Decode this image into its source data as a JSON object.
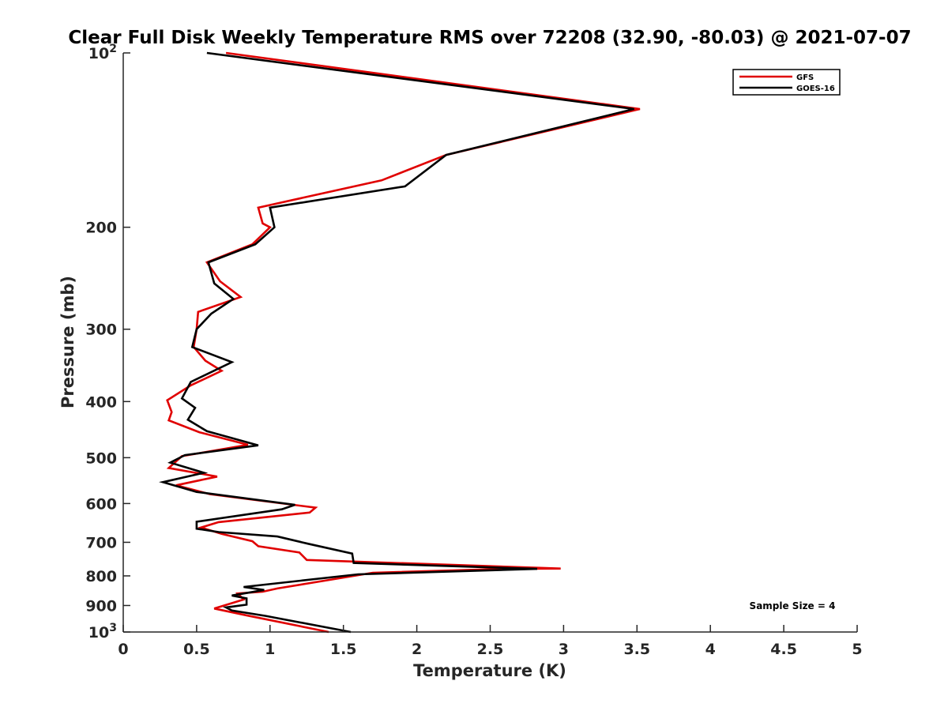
{
  "chart_data": {
    "type": "line",
    "title": "Clear Full Disk Weekly Temperature RMS over 72208 (32.90, -80.03) @ 2021-07-07",
    "xlabel": "Temperature (K)",
    "ylabel": "Pressure (mb)",
    "xlim": [
      0,
      5
    ],
    "ylim": [
      100,
      1000
    ],
    "yscale": "log",
    "y_reversed": true,
    "x_ticks": [
      0,
      0.5,
      1,
      1.5,
      2,
      2.5,
      3,
      3.5,
      4,
      4.5,
      5
    ],
    "x_tick_labels": [
      "0",
      "0.5",
      "1",
      "1.5",
      "2",
      "2.5",
      "3",
      "3.5",
      "4",
      "4.5",
      "5"
    ],
    "y_ticks": [
      100,
      200,
      300,
      400,
      500,
      600,
      700,
      800,
      900,
      1000
    ],
    "y_tick_labels": [
      {
        "base": "10",
        "exp": "2"
      },
      {
        "base": "200",
        "exp": ""
      },
      {
        "base": "300",
        "exp": ""
      },
      {
        "base": "400",
        "exp": ""
      },
      {
        "base": "500",
        "exp": ""
      },
      {
        "base": "600",
        "exp": ""
      },
      {
        "base": "700",
        "exp": ""
      },
      {
        "base": "800",
        "exp": ""
      },
      {
        "base": "900",
        "exp": ""
      },
      {
        "base": "10",
        "exp": "3"
      }
    ],
    "grid": false,
    "legend_position": "top-right",
    "annotation": "Sample Size = 4",
    "series": [
      {
        "name": "GFS",
        "color": "#e00000",
        "points": [
          [
            0.7,
            100
          ],
          [
            3.52,
            125
          ],
          [
            2.2,
            150
          ],
          [
            1.76,
            166
          ],
          [
            0.92,
            185
          ],
          [
            0.95,
            197
          ],
          [
            1.0,
            200
          ],
          [
            0.88,
            214
          ],
          [
            0.57,
            230
          ],
          [
            0.66,
            248
          ],
          [
            0.8,
            264
          ],
          [
            0.51,
            280
          ],
          [
            0.5,
            300
          ],
          [
            0.48,
            322
          ],
          [
            0.56,
            340
          ],
          [
            0.67,
            354
          ],
          [
            0.46,
            375
          ],
          [
            0.3,
            398
          ],
          [
            0.33,
            417
          ],
          [
            0.31,
            431
          ],
          [
            0.52,
            452
          ],
          [
            0.85,
            475
          ],
          [
            0.4,
            497
          ],
          [
            0.31,
            521
          ],
          [
            0.64,
            539
          ],
          [
            0.36,
            558
          ],
          [
            0.59,
            578
          ],
          [
            1.31,
            610
          ],
          [
            1.27,
            622
          ],
          [
            0.65,
            646
          ],
          [
            0.53,
            660
          ],
          [
            0.67,
            677
          ],
          [
            0.88,
            697
          ],
          [
            0.92,
            711
          ],
          [
            1.2,
            729
          ],
          [
            1.25,
            751
          ],
          [
            2.98,
            777
          ],
          [
            2.6,
            778
          ],
          [
            1.7,
            790
          ],
          [
            1.05,
            841
          ],
          [
            0.95,
            852
          ],
          [
            0.78,
            858
          ],
          [
            0.82,
            879
          ],
          [
            0.62,
            911
          ],
          [
            0.85,
            937
          ],
          [
            1.4,
            1000
          ]
        ]
      },
      {
        "name": "GOES-16",
        "color": "#000000",
        "points": [
          [
            0.57,
            100
          ],
          [
            3.48,
            125
          ],
          [
            2.2,
            150
          ],
          [
            1.92,
            170
          ],
          [
            1.0,
            185
          ],
          [
            1.03,
            200
          ],
          [
            0.9,
            214
          ],
          [
            0.58,
            230
          ],
          [
            0.62,
            250
          ],
          [
            0.75,
            266
          ],
          [
            0.6,
            282
          ],
          [
            0.5,
            300
          ],
          [
            0.47,
            322
          ],
          [
            0.74,
            342
          ],
          [
            0.46,
            370
          ],
          [
            0.4,
            395
          ],
          [
            0.49,
            410
          ],
          [
            0.44,
            430
          ],
          [
            0.57,
            450
          ],
          [
            0.92,
            476
          ],
          [
            0.42,
            495
          ],
          [
            0.32,
            510
          ],
          [
            0.55,
            531
          ],
          [
            0.27,
            551
          ],
          [
            0.5,
            573
          ],
          [
            1.17,
            603
          ],
          [
            1.08,
            614
          ],
          [
            0.5,
            645
          ],
          [
            0.5,
            663
          ],
          [
            0.65,
            672
          ],
          [
            1.05,
            684
          ],
          [
            1.26,
            704
          ],
          [
            1.56,
            732
          ],
          [
            1.57,
            760
          ],
          [
            2.82,
            778
          ],
          [
            1.6,
            795
          ],
          [
            0.82,
            836
          ],
          [
            0.96,
            846
          ],
          [
            0.74,
            865
          ],
          [
            0.84,
            875
          ],
          [
            0.84,
            897
          ],
          [
            0.7,
            907
          ],
          [
            0.74,
            918
          ],
          [
            0.97,
            938
          ],
          [
            1.55,
            1000
          ]
        ]
      }
    ]
  }
}
